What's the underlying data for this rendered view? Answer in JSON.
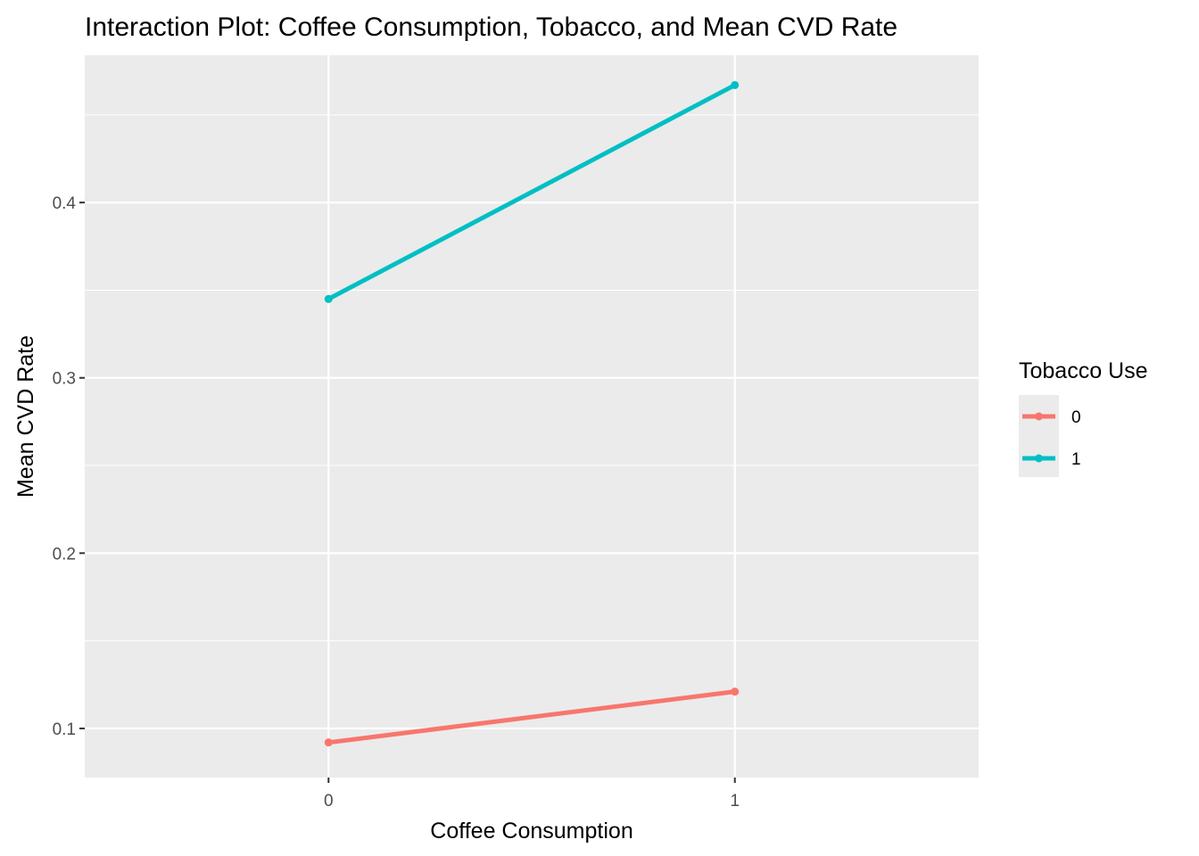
{
  "chart_data": {
    "type": "line",
    "title": "Interaction Plot: Coffee Consumption, Tobacco, and Mean CVD Rate",
    "xlabel": "Coffee Consumption",
    "ylabel": "Mean CVD Rate",
    "categories": [
      "0",
      "1"
    ],
    "yticks": [
      "0.1",
      "0.2",
      "0.3",
      "0.4"
    ],
    "ytick_values": [
      0.1,
      0.2,
      0.3,
      0.4
    ],
    "ylim": [
      0.072,
      0.484
    ],
    "xlim": [
      -0.6,
      1.6
    ],
    "grid": true,
    "legend": {
      "title": "Tobacco Use",
      "placement": "right"
    },
    "series": [
      {
        "name": "0",
        "color": "#F8766D",
        "values": [
          0.092,
          0.121
        ]
      },
      {
        "name": "1",
        "color": "#00BFC4",
        "values": [
          0.345,
          0.467
        ]
      }
    ],
    "panel_color": "#EBEBEB",
    "grid_color": "#FFFFFF"
  }
}
